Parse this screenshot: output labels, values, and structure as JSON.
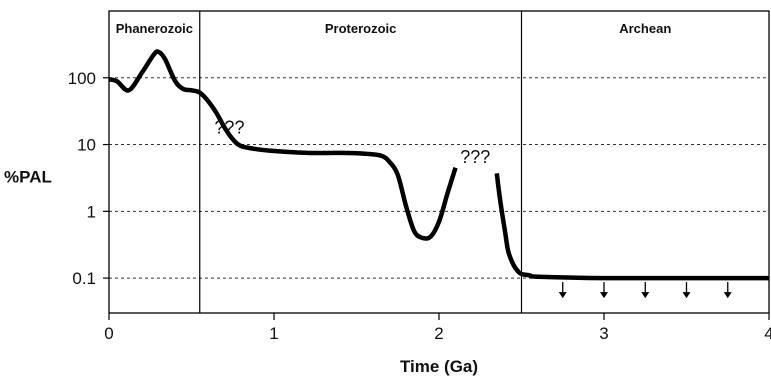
{
  "chart_data": {
    "type": "line",
    "title": "",
    "xlabel": "Time (Ga)",
    "ylabel": "%PAL",
    "xlim": [
      0,
      4
    ],
    "ylim": [
      0.03,
      1000
    ],
    "y_scale": "log",
    "x_ticks": [
      0,
      1,
      2,
      3,
      4
    ],
    "x_tick_labels": [
      "0",
      "1",
      "2",
      "3",
      "4"
    ],
    "y_ticks": [
      0.1,
      1,
      10,
      100
    ],
    "y_tick_labels": [
      "0.1",
      "1",
      "10",
      "100"
    ],
    "grid": "horizontal dashed at y ticks",
    "era_boundaries": [
      0.55,
      2.5
    ],
    "eras": [
      {
        "name": "Phanerozoic",
        "start": 0,
        "end": 0.55
      },
      {
        "name": "Proterozoic",
        "start": 0.55,
        "end": 2.5
      },
      {
        "name": "Archean",
        "start": 2.5,
        "end": 4
      }
    ],
    "series": [
      {
        "segment": "0-2.1 Ga",
        "x": [
          0,
          0.05,
          0.12,
          0.2,
          0.27,
          0.3,
          0.34,
          0.4,
          0.45,
          0.5,
          0.55,
          0.6,
          0.65,
          0.7,
          0.75,
          0.8,
          0.9,
          1.0,
          1.2,
          1.4,
          1.55,
          1.65,
          1.7,
          1.75,
          1.8,
          1.85,
          1.9,
          1.95,
          2.0,
          2.05,
          2.1
        ],
        "y": [
          95,
          88,
          65,
          120,
          220,
          245,
          190,
          90,
          68,
          65,
          60,
          45,
          30,
          18,
          12,
          9.5,
          8.5,
          8,
          7.5,
          7.5,
          7.3,
          6.8,
          5.5,
          3.5,
          1.2,
          0.5,
          0.4,
          0.42,
          0.7,
          1.8,
          4.5
        ]
      },
      {
        "segment": "2.35-4 Ga",
        "x": [
          2.35,
          2.37,
          2.4,
          2.42,
          2.45,
          2.48,
          2.5,
          2.55,
          2.6,
          3.0,
          3.5,
          4.0
        ],
        "y": [
          3.7,
          1.5,
          0.5,
          0.25,
          0.16,
          0.125,
          0.115,
          0.11,
          0.105,
          0.1,
          0.1,
          0.1
        ]
      }
    ],
    "upper_limit_arrows_x": [
      2.75,
      3.0,
      3.25,
      3.5,
      3.75
    ],
    "upper_limit_arrows_y": 0.1,
    "annotations": [
      {
        "text": "???",
        "x": 0.73,
        "y": 18
      },
      {
        "text": "???",
        "x": 2.22,
        "y": 6.5
      }
    ]
  }
}
